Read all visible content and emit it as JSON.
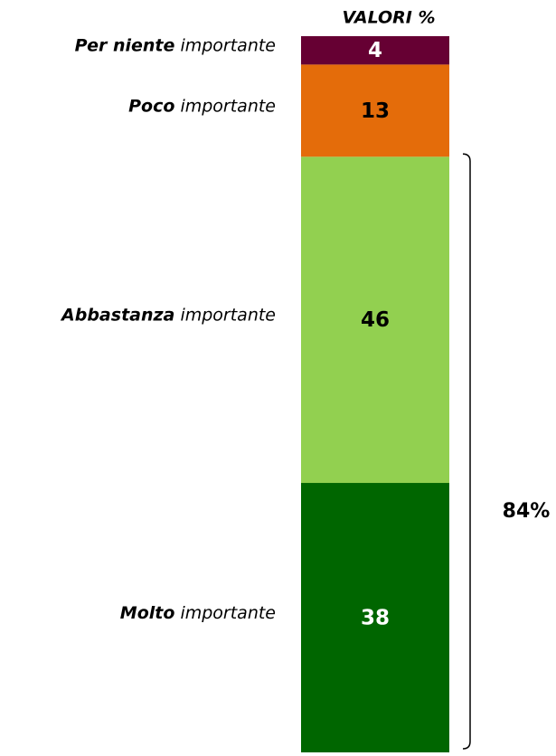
{
  "chart_data": {
    "type": "stacked_bar",
    "title": "VALORI %",
    "series": [
      {
        "name_bold": "Molto",
        "name_rest": "importante",
        "color": "#006600",
        "label_color": "#ffffff",
        "values": [
          38
        ]
      },
      {
        "name_bold": "Abbastanza",
        "name_rest": "importante",
        "color": "#92d050",
        "label_color": "#000000",
        "values": [
          46
        ]
      },
      {
        "name_bold": "Poco",
        "name_rest": "importante",
        "color": "#e46c0a",
        "label_color": "#000000",
        "values": [
          13
        ]
      },
      {
        "name_bold": "Per niente",
        "name_rest": "importante",
        "color": "#660033",
        "label_color": "#ffffff",
        "values": [
          4
        ]
      }
    ],
    "annotation": "84%"
  }
}
